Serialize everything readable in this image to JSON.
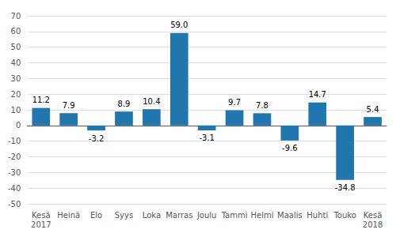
{
  "chart_data": {
    "type": "bar",
    "categories": [
      "Kesä\n2017",
      "Heinä",
      "Elo",
      "Syys",
      "Loka",
      "Marras",
      "Joulu",
      "Tammi",
      "Helmi",
      "Maalis",
      "Huhti",
      "Touko",
      "Kesä\n2018"
    ],
    "values": [
      11.2,
      7.9,
      -3.2,
      8.9,
      10.4,
      59.0,
      -3.1,
      9.7,
      7.8,
      -9.6,
      14.7,
      -34.8,
      5.4
    ],
    "value_labels": [
      "11.2",
      "7.9",
      "-3.2",
      "8.9",
      "10.4",
      "59.0",
      "-3.1",
      "9.7",
      "7.8",
      "-9.6",
      "14.7",
      "-34.8",
      "5.4"
    ],
    "color": "#2176ae",
    "ylim": [
      -50,
      70
    ],
    "yticks": [
      -50,
      -40,
      -30,
      -20,
      -10,
      0,
      10,
      20,
      30,
      40,
      50,
      60,
      70
    ],
    "grid": true,
    "data_labels": true
  }
}
